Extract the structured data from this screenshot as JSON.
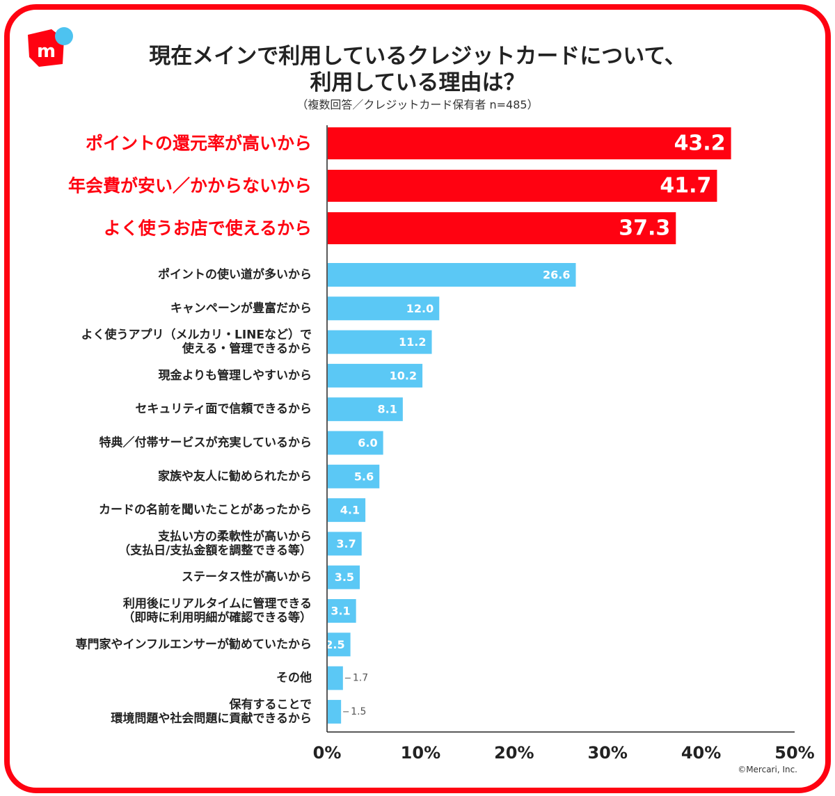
{
  "title_line1": "現在メインで利用しているクレジットカードについて、",
  "title_line2": "利用している理由は？",
  "subtitle": "（複数回答／クレジットカード保有者 n=485）",
  "copyright": "©Mercari, Inc.",
  "colors": {
    "highlight": "#ff0211",
    "bar": "#5bc8f5",
    "logo_dot": "#4dc3f0"
  },
  "chart_data": {
    "type": "bar",
    "orientation": "horizontal",
    "xlim": [
      0,
      50
    ],
    "x_ticks": [
      "0%",
      "10%",
      "20%",
      "30%",
      "40%",
      "50%"
    ],
    "categories": [
      [
        "ポイントの還元率が高いから"
      ],
      [
        "年会費が安い／かからないから"
      ],
      [
        "よく使うお店で使えるから"
      ],
      [
        "ポイントの使い道が多いから"
      ],
      [
        "キャンペーンが豊富だから"
      ],
      [
        "よく使うアプリ（メルカリ・LINEなど）で",
        "使える・管理できるから"
      ],
      [
        "現金よりも管理しやすいから"
      ],
      [
        "セキュリティ面で信頼できるから"
      ],
      [
        "特典／付帯サービスが充実しているから"
      ],
      [
        "家族や友人に勧められたから"
      ],
      [
        "カードの名前を聞いたことがあったから"
      ],
      [
        "支払い方の柔軟性が高いから",
        "（支払日/支払金額を調整できる等）"
      ],
      [
        "ステータス性が高いから"
      ],
      [
        "利用後にリアルタイムに管理できる",
        "（即時に利用明細が確認できる等）"
      ],
      [
        "専門家やインフルエンサーが勧めていたから"
      ],
      [
        "その他"
      ],
      [
        "保有することで",
        "環境問題や社会問題に貢献できるから"
      ]
    ],
    "values": [
      43.2,
      41.7,
      37.3,
      26.6,
      12.0,
      11.2,
      10.2,
      8.1,
      6.0,
      5.6,
      4.1,
      3.7,
      3.5,
      3.1,
      2.5,
      1.7,
      1.5
    ],
    "value_labels": [
      "43.2",
      "41.7",
      "37.3",
      "26.6",
      "12.0",
      "11.2",
      "10.2",
      "8.1",
      "6.0",
      "5.6",
      "4.1",
      "3.7",
      "3.5",
      "3.1",
      "2.5",
      "1.7",
      "1.5"
    ],
    "highlighted": [
      true,
      true,
      true,
      false,
      false,
      false,
      false,
      false,
      false,
      false,
      false,
      false,
      false,
      false,
      false,
      false,
      false
    ]
  }
}
